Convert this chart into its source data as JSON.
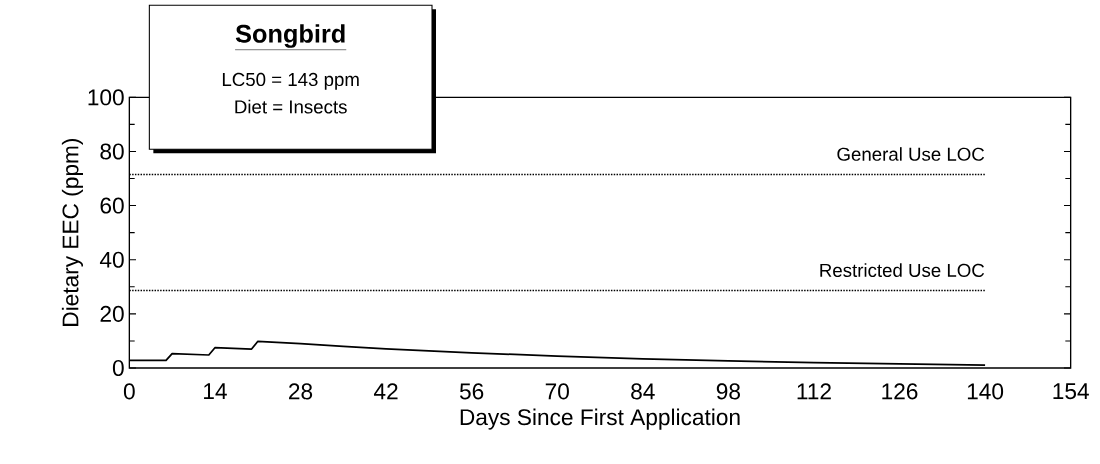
{
  "chart_data": {
    "type": "line",
    "title": "Songbird",
    "annotations": [
      "LC50 = 143 ppm",
      "Diet = Insects"
    ],
    "xlabel": "Days Since First Application",
    "ylabel": "Dietary EEC (ppm)",
    "x": [
      0,
      6,
      7,
      13,
      14,
      20,
      21,
      28,
      35,
      42,
      49,
      56,
      63,
      70,
      84,
      98,
      112,
      126,
      140
    ],
    "values": [
      2.8,
      2.8,
      5.3,
      4.8,
      7.5,
      7.0,
      9.8,
      9.0,
      8.0,
      7.1,
      6.3,
      5.6,
      5.0,
      4.4,
      3.4,
      2.6,
      2.0,
      1.5,
      1.1
    ],
    "color": "#000000",
    "xlim": [
      0,
      154
    ],
    "ylim": [
      0,
      100
    ],
    "xticks": [
      0,
      14,
      28,
      42,
      56,
      70,
      84,
      98,
      112,
      126,
      140,
      154
    ],
    "yticks": [
      0,
      20,
      40,
      60,
      80,
      100
    ],
    "ref_lines": [
      {
        "axis": "y",
        "value": 71.5,
        "label": "General Use LOC",
        "color": "#000000",
        "line_style": "dotted"
      },
      {
        "axis": "y",
        "value": 28.6,
        "label": "Restricted Use LOC",
        "color": "#000000",
        "line_style": "dotted"
      }
    ],
    "grid": false
  }
}
